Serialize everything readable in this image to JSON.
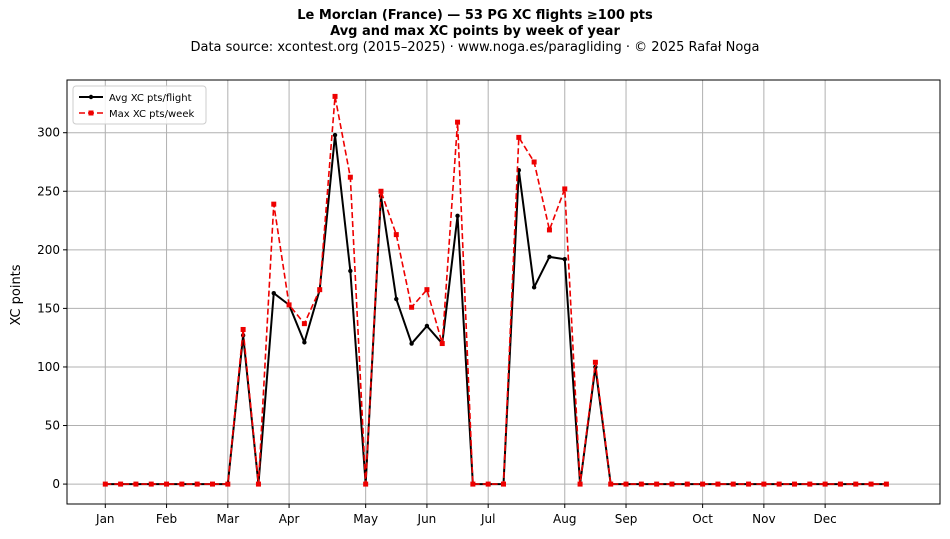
{
  "chart_data": {
    "type": "line",
    "title": "Le Morclan (France)  —  53 PG XC flights ≥100 pts",
    "subtitle": "Avg and max XC points by week of year",
    "source": "Data source: xcontest.org (2015–2025)  ·  www.noga.es/paragliding  ·  © 2025 Rafał Noga",
    "xlabel": "",
    "ylabel": "XC points",
    "xlim": [
      -2.5,
      54.5
    ],
    "ylim": [
      -17,
      345
    ],
    "y_ticks": [
      0,
      50,
      100,
      150,
      200,
      250,
      300
    ],
    "month_ticks": [
      {
        "label": "Jan",
        "x": 0
      },
      {
        "label": "Feb",
        "x": 4
      },
      {
        "label": "Mar",
        "x": 8
      },
      {
        "label": "Apr",
        "x": 12
      },
      {
        "label": "May",
        "x": 17
      },
      {
        "label": "Jun",
        "x": 21
      },
      {
        "label": "Jul",
        "x": 25
      },
      {
        "label": "Aug",
        "x": 30
      },
      {
        "label": "Sep",
        "x": 34
      },
      {
        "label": "Oct",
        "x": 39
      },
      {
        "label": "Nov",
        "x": 43
      },
      {
        "label": "Dec",
        "x": 47
      }
    ],
    "grid": true,
    "legend_position": "top-left",
    "x": [
      0,
      1,
      2,
      3,
      4,
      5,
      6,
      7,
      8,
      9,
      10,
      11,
      12,
      13,
      14,
      15,
      16,
      17,
      18,
      19,
      20,
      21,
      22,
      23,
      24,
      25,
      26,
      27,
      28,
      29,
      30,
      31,
      32,
      33,
      34,
      35,
      36,
      37,
      38,
      39,
      40,
      41,
      42,
      43,
      44,
      45,
      46,
      47,
      48,
      49,
      50,
      51
    ],
    "series": [
      {
        "name": "Avg XC pts/flight",
        "color": "#000000",
        "style": "solid",
        "marker": "circle",
        "values": [
          0,
          0,
          0,
          0,
          0,
          0,
          0,
          0,
          0,
          127,
          0,
          163,
          153,
          121,
          166,
          298,
          182,
          0,
          246,
          158,
          120,
          135,
          120,
          229,
          0,
          0,
          0,
          268,
          168,
          194,
          192,
          0,
          100,
          0,
          0,
          0,
          0,
          0,
          0,
          0,
          0,
          0,
          0,
          0,
          0,
          0,
          0,
          0,
          0,
          0,
          0,
          0
        ]
      },
      {
        "name": "Max XC pts/week",
        "color": "#ee0000",
        "style": "dashed",
        "marker": "square",
        "values": [
          0,
          0,
          0,
          0,
          0,
          0,
          0,
          0,
          0,
          132,
          0,
          239,
          153,
          137,
          166,
          331,
          262,
          0,
          250,
          213,
          151,
          166,
          120,
          309,
          0,
          0,
          0,
          296,
          275,
          217,
          252,
          0,
          104,
          0,
          0,
          0,
          0,
          0,
          0,
          0,
          0,
          0,
          0,
          0,
          0,
          0,
          0,
          0,
          0,
          0,
          0,
          0
        ]
      }
    ]
  }
}
